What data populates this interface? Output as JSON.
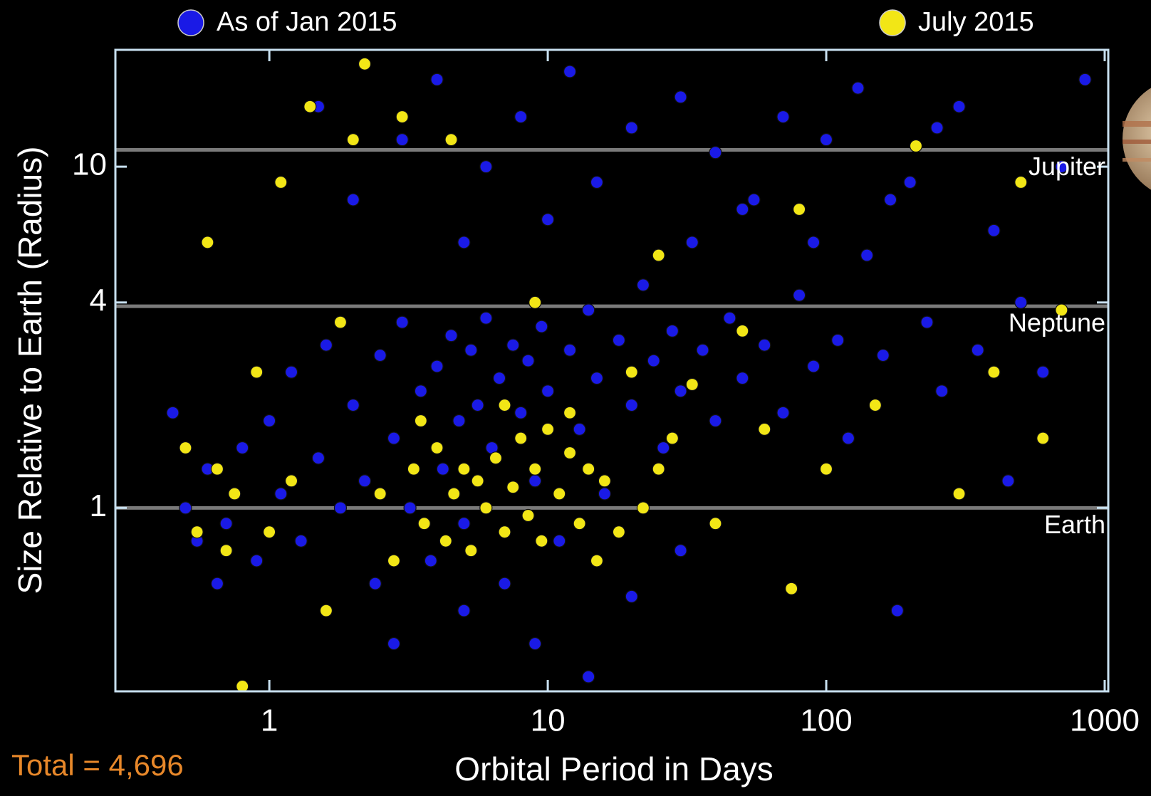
{
  "chart_data": {
    "type": "scatter",
    "x_label": "Orbital Period in Days",
    "y_label": "Size Relative to Earth (Radius)",
    "annotation": "Total = 4,696",
    "log_x": true,
    "log_y": true,
    "legend": "top",
    "xlim": [
      0.28,
      1030
    ],
    "ylim": [
      0.29,
      22
    ],
    "xticks": [
      1,
      10,
      100,
      1000
    ],
    "yticks": [
      1,
      4,
      10
    ],
    "reference_lines": [
      {
        "label": "Jupiter",
        "value": 11.2
      },
      {
        "label": "Neptune",
        "value": 3.9
      },
      {
        "label": "Earth",
        "value": 1
      }
    ],
    "series": [
      {
        "name": "As of Jan 2015",
        "color": "#1a1ae6",
        "x": [
          0.5,
          0.55,
          0.6,
          0.7,
          0.8,
          0.9,
          1.0,
          1.1,
          1.2,
          1.3,
          1.5,
          1.6,
          1.8,
          2.0,
          2.2,
          2.4,
          2.5,
          2.8,
          3.0,
          3.2,
          3.5,
          3.8,
          4.0,
          4.2,
          4.5,
          4.8,
          5.0,
          5.3,
          5.6,
          6.0,
          6.3,
          6.7,
          7.0,
          7.5,
          8.0,
          8.5,
          9.0,
          9.5,
          10,
          11,
          12,
          13,
          14,
          15,
          16,
          18,
          20,
          22,
          24,
          26,
          28,
          30,
          33,
          36,
          40,
          45,
          50,
          55,
          60,
          70,
          80,
          90,
          100,
          110,
          120,
          140,
          160,
          180,
          200,
          230,
          260,
          300,
          350,
          400,
          450,
          500,
          600,
          700,
          850,
          1.5,
          2,
          3,
          4,
          5,
          6,
          8,
          10,
          12,
          15,
          20,
          25,
          30,
          40,
          50,
          70,
          90,
          130,
          170,
          250,
          2.8,
          5,
          9,
          14,
          20,
          30,
          0.45,
          0.65
        ],
        "values": [
          1.0,
          0.8,
          1.3,
          0.9,
          1.5,
          0.7,
          1.8,
          1.1,
          2.5,
          0.8,
          1.4,
          3.0,
          1.0,
          2.0,
          1.2,
          0.6,
          2.8,
          1.6,
          3.5,
          1.0,
          2.2,
          0.7,
          2.6,
          1.3,
          3.2,
          1.8,
          0.9,
          2.9,
          2.0,
          3.6,
          1.5,
          2.4,
          0.6,
          3.0,
          1.9,
          2.7,
          1.2,
          3.4,
          2.2,
          0.8,
          2.9,
          1.7,
          3.8,
          2.4,
          1.1,
          3.1,
          2.0,
          4.5,
          2.7,
          1.5,
          3.3,
          2.2,
          6.0,
          2.9,
          1.8,
          3.6,
          2.4,
          8.0,
          3.0,
          1.9,
          4.2,
          2.6,
          12,
          3.1,
          1.6,
          5.5,
          2.8,
          0.5,
          9.0,
          3.5,
          2.2,
          15,
          2.9,
          6.5,
          1.2,
          4.0,
          2.5,
          10,
          18,
          15,
          8,
          12,
          18,
          6,
          10,
          14,
          7,
          19,
          9,
          13,
          5.5,
          16,
          11,
          7.5,
          14,
          6,
          17,
          8,
          13,
          0.4,
          0.5,
          0.4,
          0.32,
          0.55,
          0.75,
          1.9,
          0.6
        ]
      },
      {
        "name": "July 2015",
        "color": "#f2e616",
        "x": [
          0.5,
          0.55,
          0.6,
          0.65,
          0.7,
          0.75,
          0.8,
          0.9,
          1.0,
          1.1,
          1.2,
          1.4,
          1.6,
          1.8,
          2.0,
          2.2,
          2.5,
          2.8,
          3.0,
          3.3,
          3.6,
          4.0,
          4.3,
          4.6,
          5.0,
          5.3,
          5.6,
          6.0,
          6.5,
          7.0,
          7.5,
          8.0,
          8.5,
          9.0,
          9.5,
          10,
          11,
          12,
          13,
          14,
          15,
          16,
          18,
          20,
          22,
          25,
          28,
          33,
          40,
          50,
          60,
          75,
          80,
          100,
          150,
          210,
          300,
          400,
          500,
          600,
          700,
          3.5,
          4.5,
          7,
          12,
          25,
          9
        ],
        "values": [
          1.5,
          0.85,
          6,
          1.3,
          0.75,
          1.1,
          0.3,
          2.5,
          0.85,
          9,
          1.2,
          15,
          0.5,
          3.5,
          12,
          20,
          1.1,
          0.7,
          14,
          1.3,
          0.9,
          1.5,
          0.8,
          1.1,
          1.3,
          0.75,
          1.2,
          1.0,
          1.4,
          0.85,
          1.15,
          1.6,
          0.95,
          1.3,
          0.8,
          1.7,
          1.1,
          1.45,
          0.9,
          1.3,
          0.7,
          1.2,
          0.85,
          2.5,
          1.0,
          5.5,
          1.6,
          2.3,
          0.9,
          3.3,
          1.7,
          0.58,
          7.5,
          1.3,
          2.0,
          11.5,
          1.1,
          2.5,
          9,
          1.6,
          3.8,
          1.8,
          12,
          2.0,
          1.9,
          1.3,
          4.0
        ]
      }
    ]
  }
}
